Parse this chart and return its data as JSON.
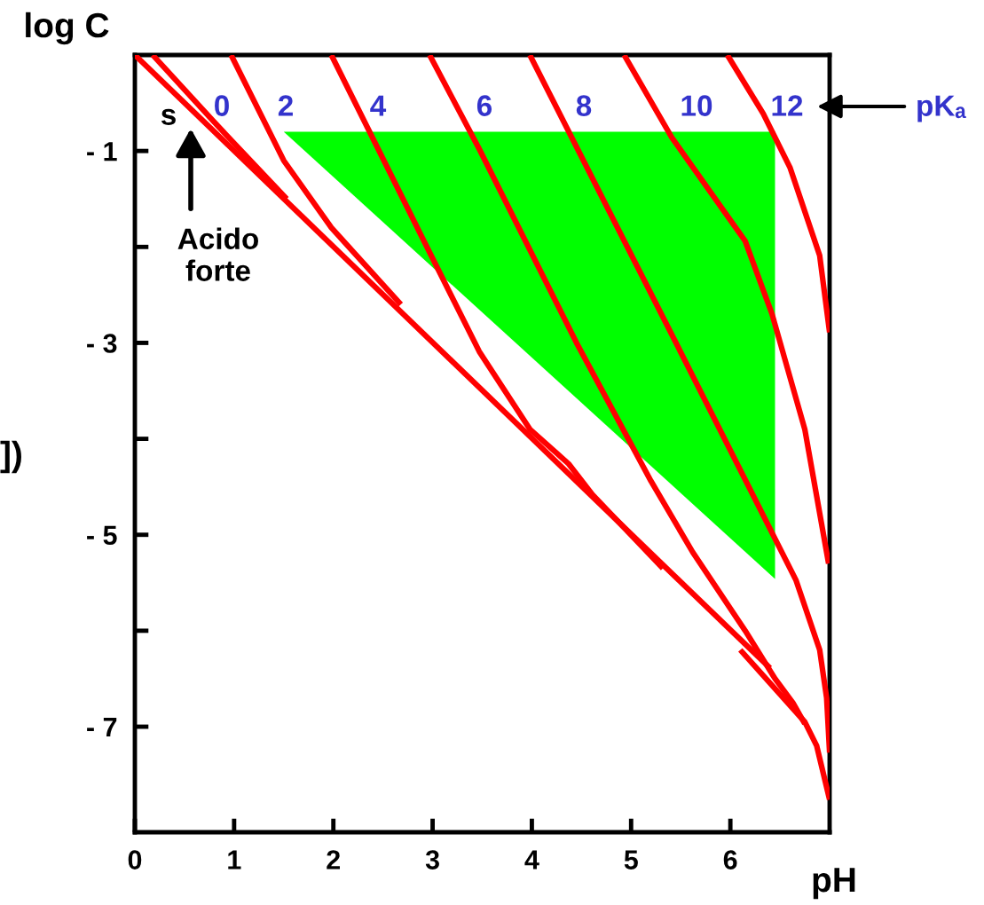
{
  "chart_data": {
    "type": "line",
    "xlabel": "pH",
    "ylabel": "log C",
    "xlim": [
      0,
      7
    ],
    "ylim": [
      -8.1,
      0
    ],
    "xticks": [
      0,
      1,
      2,
      3,
      4,
      5,
      6
    ],
    "yticks": [
      {
        "value": -1,
        "label": "- 1"
      },
      {
        "value": -2,
        "label": null
      },
      {
        "value": -3,
        "label": "- 3"
      },
      {
        "value": -4,
        "label": null
      },
      {
        "value": -5,
        "label": "- 5"
      },
      {
        "value": -6,
        "label": null
      },
      {
        "value": -7,
        "label": "- 7"
      }
    ],
    "grid": false,
    "legend": false,
    "line_style": "solid",
    "marker": "none",
    "series": [
      {
        "type": "area",
        "color": "#00ff00",
        "x": [
          1.5,
          6.45,
          6.45
        ],
        "values": [
          -0.8,
          -0.8,
          -5.46
        ]
      },
      {
        "color": "#ff0000",
        "x": [
          0,
          6.4
        ],
        "values": [
          0,
          -6.39
        ]
      },
      {
        "color": "#ff0000",
        "x": [
          6.1,
          6.75,
          6.87,
          7.0
        ],
        "values": [
          -6.2,
          -6.95,
          -7.2,
          -7.76
        ]
      },
      {
        "color": "#ff0000",
        "x": [
          0.18,
          0.8,
          1.53
        ],
        "values": [
          0,
          -0.7,
          -1.5
        ]
      },
      {
        "color": "#ff0000",
        "x": [
          0.97,
          1.5,
          1.98,
          2.68
        ],
        "values": [
          0,
          -1.1,
          -1.8,
          -2.6
        ]
      },
      {
        "color": "#ff0000",
        "x": [
          1.98,
          2.87,
          3.47,
          3.98,
          4.37,
          4.61,
          5.32
        ],
        "values": [
          0,
          -1.85,
          -3.09,
          -3.9,
          -4.26,
          -4.58,
          -5.35
        ]
      },
      {
        "color": "#ff0000",
        "x": [
          2.97,
          3.47,
          4.45,
          5.2,
          5.62,
          6.15,
          6.45,
          6.63,
          6.75
        ],
        "values": [
          0,
          -0.98,
          -3.0,
          -4.44,
          -5.18,
          -6.0,
          -6.5,
          -6.75,
          -6.97
        ]
      },
      {
        "color": "#ff0000",
        "x": [
          3.98,
          5.55,
          6.66,
          6.9,
          6.97,
          7.0
        ],
        "values": [
          0,
          -3.2,
          -5.47,
          -6.2,
          -6.7,
          -7.27
        ]
      },
      {
        "color": "#ff0000",
        "x": [
          4.93,
          5.41,
          6.15,
          6.42,
          6.75,
          6.99
        ],
        "values": [
          0,
          -0.86,
          -1.94,
          -2.7,
          -3.9,
          -5.3
        ]
      },
      {
        "color": "#ff0000",
        "x": [
          5.97,
          6.33,
          6.6,
          6.9,
          7.0
        ],
        "values": [
          0,
          -0.61,
          -1.17,
          -2.09,
          -2.89
        ]
      }
    ],
    "annotations": [
      "0",
      "2",
      "4",
      "6",
      "8",
      "10",
      "12",
      "s",
      "Acido\nforte",
      "pKₐ",
      "])"
    ]
  }
}
